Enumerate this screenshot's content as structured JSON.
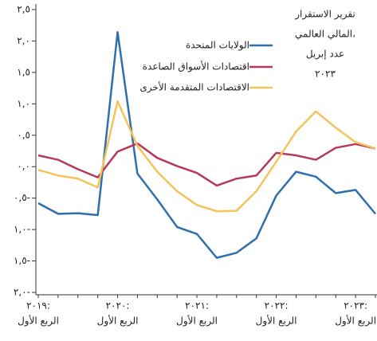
{
  "chart_data": {
    "type": "line",
    "title_lines": [
      "تقرير الاستقرار",
      "المالي العالمي،",
      "عدد إبريل",
      "٢٠٢٣"
    ],
    "categories": [
      "٢٠١٩:",
      null,
      null,
      null,
      "٢٠٢٠:",
      null,
      null,
      null,
      "٢٠٢١:",
      null,
      null,
      null,
      "٢٠٢٢:",
      null,
      null,
      null,
      "٢٠٢٣:",
      null
    ],
    "category_sublabels": [
      "الربع الأول",
      null,
      null,
      null,
      "الربع الأول",
      null,
      null,
      null,
      "الربع الأول",
      null,
      null,
      null,
      "الربع الأول",
      null,
      null,
      null,
      "الربع الأول",
      null
    ],
    "series": [
      {
        "name": "الولايات المتحدة",
        "color": "#2e6fad",
        "values": [
          -0.58,
          -0.75,
          -0.74,
          -0.77,
          2.14,
          -0.11,
          -0.52,
          -0.96,
          -1.07,
          -1.45,
          -1.37,
          -1.14,
          -0.46,
          -0.08,
          -0.16,
          -0.42,
          -0.37,
          -0.75
        ]
      },
      {
        "name": "اقتصادات الأسواق الصاعدة",
        "color": "#b5395f",
        "values": [
          0.18,
          0.11,
          -0.04,
          -0.17,
          0.24,
          0.37,
          0.14,
          0.01,
          -0.1,
          -0.3,
          -0.19,
          -0.14,
          0.22,
          0.18,
          0.11,
          0.3,
          0.36,
          0.29
        ]
      },
      {
        "name": "الاقتصادات المتقدمة الأخرى",
        "color": "#f5c35a",
        "values": [
          -0.05,
          -0.14,
          -0.19,
          -0.33,
          1.04,
          0.33,
          -0.08,
          -0.39,
          -0.61,
          -0.71,
          -0.7,
          -0.39,
          0.08,
          0.56,
          0.88,
          0.62,
          0.39,
          0.29
        ]
      }
    ],
    "ylim": [
      -2.0,
      2.5
    ],
    "yticks": [
      {
        "value": 2.5,
        "label": "٢,٥"
      },
      {
        "value": 2.0,
        "label": "٢,٠"
      },
      {
        "value": 1.5,
        "label": "١,٥"
      },
      {
        "value": 1.0,
        "label": "١,٠"
      },
      {
        "value": 0.5,
        "label": "٠,٥"
      },
      {
        "value": 0,
        "label": "٠,٠"
      },
      {
        "value": -0.5,
        "label": "٠,٥-"
      },
      {
        "value": -1.0,
        "label": "١,٠-"
      },
      {
        "value": -1.5,
        "label": "١,٥-"
      },
      {
        "value": -2.0,
        "label": "٢,٠-"
      }
    ],
    "grid": false
  }
}
